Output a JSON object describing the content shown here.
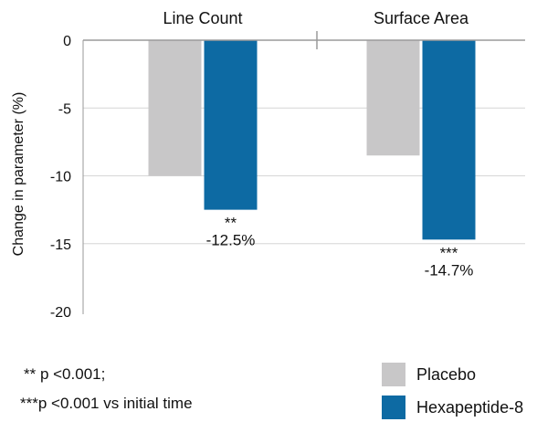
{
  "chart_data": {
    "type": "bar",
    "categories": [
      "Line Count",
      "Surface Area"
    ],
    "series": [
      {
        "name": "Placebo",
        "color": "#c8c7c8",
        "values": [
          -10.0,
          -8.5
        ],
        "labels": [
          "",
          ""
        ]
      },
      {
        "name": "Hexapeptide-8",
        "color": "#0d6aa3",
        "values": [
          -12.5,
          -14.7
        ],
        "labels": [
          "**\n-12.5%",
          "***\n-14.7%"
        ]
      }
    ],
    "ylabel": "Change in parameter (%)",
    "ylim": [
      -20,
      0
    ],
    "yticks": [
      "0",
      "-5",
      "-10",
      "-15",
      "-20"
    ],
    "categories_position": "top",
    "grid": true,
    "legend": "bottom-right"
  },
  "notes": {
    "line1": "** p <0.001;",
    "line2": "***p <0.001 vs initial time"
  }
}
